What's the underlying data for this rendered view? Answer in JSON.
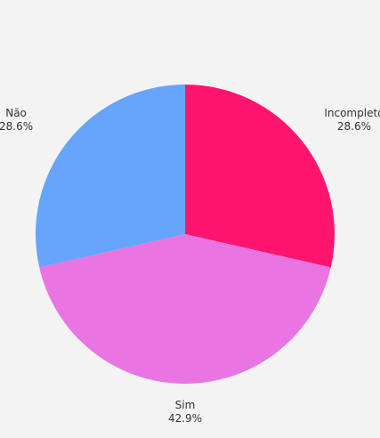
{
  "chart_data": {
    "type": "pie",
    "title": "",
    "slices": [
      {
        "name": "Incompleto",
        "value": 28.6,
        "label": "28.6%",
        "color": "#ff1470"
      },
      {
        "name": "Sim",
        "value": 42.9,
        "label": "42.9%",
        "color": "#e875e1"
      },
      {
        "name": "Não",
        "value": 28.6,
        "label": "28.6%",
        "color": "#66a5fb"
      }
    ],
    "start_angle_deg": 0,
    "direction": "clockwise"
  }
}
